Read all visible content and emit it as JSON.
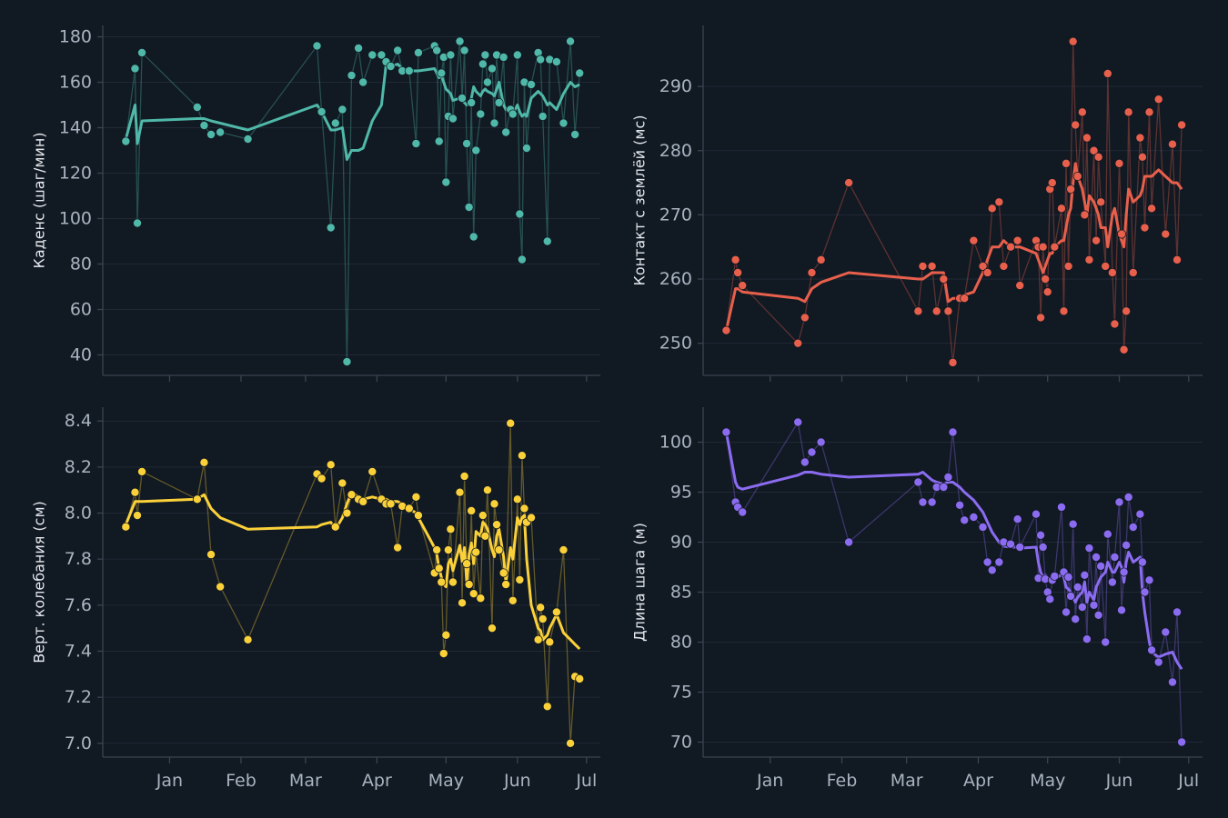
{
  "chart_data": [
    {
      "type": "line",
      "ylabel": "Каденс (шаг/мин)",
      "grid": true,
      "x": [
        -19,
        -15,
        -14,
        -12,
        12,
        15,
        18,
        22,
        34,
        64,
        66,
        70,
        72,
        75,
        77,
        79,
        82,
        84,
        88,
        92,
        94,
        96,
        99,
        101,
        104,
        107,
        108,
        115,
        116,
        117,
        118,
        119,
        120,
        121,
        122,
        123,
        126,
        127,
        128,
        129,
        130,
        131,
        132,
        133,
        135,
        136,
        137,
        138,
        140,
        141,
        142,
        143,
        145,
        146,
        148,
        149,
        151,
        152,
        153,
        154,
        155,
        157,
        160,
        161,
        162,
        164,
        165,
        168,
        171,
        174,
        176,
        178
      ],
      "xlim": [
        -29,
        187
      ],
      "xticks": [
        0,
        31,
        59,
        90,
        120,
        151,
        181
      ],
      "ylim": [
        31,
        185
      ],
      "yticks": [
        40,
        60,
        80,
        100,
        120,
        140,
        160,
        180
      ],
      "series": [
        {
          "color": "#4fb8a8",
          "markers": true,
          "line_width": 1.3,
          "line_opacity": 0.35,
          "values": [
            134,
            166,
            98,
            173,
            149,
            141,
            137,
            138,
            135,
            176,
            147,
            96,
            142,
            148,
            37,
            163,
            175,
            160,
            172,
            172,
            169,
            167,
            174,
            165,
            165,
            133,
            173,
            176,
            174,
            134,
            164,
            171,
            116,
            145,
            172,
            144,
            178,
            153,
            174,
            133,
            105,
            151,
            92,
            130,
            146,
            168,
            172,
            160,
            166,
            142,
            172,
            151,
            171,
            138,
            148,
            146,
            172,
            102,
            82,
            160,
            131,
            159,
            173,
            170,
            145,
            90,
            170,
            169,
            142,
            178,
            137,
            164
          ]
        },
        {
          "color": "#4fb8a8",
          "markers": false,
          "line_width": 3,
          "line_opacity": 1,
          "values": [
            135,
            150,
            133,
            143,
            144,
            144,
            143,
            142,
            139,
            150,
            147,
            139,
            139,
            140,
            126,
            130,
            130,
            131,
            143,
            150,
            168,
            167,
            168,
            166,
            165,
            165,
            165,
            166,
            164,
            162,
            163,
            160,
            157,
            156,
            155,
            152,
            153,
            152,
            151,
            150,
            151,
            153,
            158,
            156,
            154,
            156,
            157,
            156,
            155,
            154,
            157,
            160,
            150,
            148,
            147,
            146,
            150,
            147,
            145,
            146,
            145,
            153,
            156,
            155,
            154,
            150,
            151,
            148,
            155,
            160,
            158,
            159
          ]
        }
      ]
    },
    {
      "type": "line",
      "ylabel": "Контакт с землёй (мс)",
      "grid": true,
      "x": [
        -19,
        -15,
        -14,
        -12,
        12,
        15,
        18,
        22,
        34,
        64,
        66,
        70,
        72,
        75,
        77,
        79,
        82,
        84,
        88,
        92,
        94,
        96,
        99,
        101,
        104,
        107,
        108,
        115,
        116,
        117,
        118,
        119,
        120,
        121,
        122,
        123,
        126,
        127,
        128,
        129,
        130,
        131,
        132,
        133,
        135,
        136,
        137,
        138,
        140,
        141,
        142,
        143,
        145,
        146,
        148,
        149,
        151,
        152,
        153,
        154,
        155,
        157,
        160,
        161,
        162,
        164,
        165,
        168,
        171,
        174,
        176,
        178
      ],
      "xlim": [
        -29,
        187
      ],
      "xticks": [
        0,
        31,
        59,
        90,
        120,
        151,
        181
      ],
      "ylim": [
        245,
        299.5
      ],
      "yticks": [
        250,
        260,
        270,
        280,
        290
      ],
      "series": [
        {
          "color": "#e8604c",
          "markers": true,
          "line_width": 1.3,
          "line_opacity": 0.35,
          "values": [
            252,
            263,
            261,
            259,
            250,
            254,
            261,
            263,
            275,
            255,
            262,
            262,
            255,
            260,
            255,
            247,
            257,
            257,
            266,
            262,
            261,
            271,
            272,
            262,
            265,
            266,
            259,
            266,
            265,
            254,
            265,
            260,
            258,
            274,
            275,
            265,
            271,
            255,
            278,
            262,
            274,
            297,
            284,
            276,
            286,
            270,
            282,
            263,
            280,
            266,
            279,
            272,
            262,
            292,
            261,
            253,
            278,
            267,
            249,
            255,
            286,
            261,
            282,
            279,
            268,
            286,
            271,
            288,
            267,
            281,
            263,
            284
          ]
        },
        {
          "color": "#e8604c",
          "markers": false,
          "line_width": 3,
          "line_opacity": 1,
          "values": [
            252,
            258.5,
            258.5,
            258,
            257,
            256.5,
            258.5,
            259.5,
            261,
            260,
            260,
            261,
            261,
            261,
            256.5,
            257,
            257,
            257.5,
            258,
            261,
            263,
            265,
            265,
            266,
            265,
            265,
            265,
            264,
            263,
            262,
            261,
            262,
            263,
            264,
            264,
            265,
            266,
            266,
            268,
            270,
            271,
            275,
            278,
            276,
            274,
            272,
            270,
            273,
            272,
            271,
            270,
            268,
            268,
            265,
            270,
            271,
            267,
            266,
            265,
            270,
            274,
            272,
            273,
            274,
            276,
            276,
            276,
            277,
            276,
            275,
            275,
            274
          ]
        }
      ]
    },
    {
      "type": "line",
      "ylabel": "Верт. колебания (см)",
      "grid": true,
      "x": [
        -19,
        -15,
        -14,
        -12,
        12,
        15,
        18,
        22,
        34,
        64,
        66,
        70,
        72,
        75,
        77,
        79,
        82,
        84,
        88,
        92,
        94,
        96,
        99,
        101,
        104,
        107,
        108,
        115,
        116,
        117,
        118,
        119,
        120,
        121,
        122,
        123,
        126,
        127,
        128,
        129,
        130,
        131,
        132,
        133,
        135,
        136,
        137,
        138,
        140,
        141,
        142,
        143,
        145,
        146,
        148,
        149,
        151,
        152,
        153,
        154,
        155,
        157,
        160,
        161,
        162,
        164,
        165,
        168,
        171,
        174,
        176,
        178
      ],
      "xlim": [
        -29,
        187
      ],
      "xticks": [
        {
          "value": 0,
          "label": "Jan"
        },
        {
          "value": 31,
          "label": "Feb"
        },
        {
          "value": 59,
          "label": "Mar"
        },
        {
          "value": 90,
          "label": "Apr"
        },
        {
          "value": 120,
          "label": "May"
        },
        {
          "value": 151,
          "label": "Jun"
        },
        {
          "value": 181,
          "label": "Jul"
        }
      ],
      "ylim": [
        6.94,
        8.46
      ],
      "yticks": [
        {
          "value": 7,
          "label": "7.0"
        },
        7.2,
        7.4,
        7.6,
        7.8,
        {
          "value": 8,
          "label": "8.0"
        },
        8.2,
        8.4
      ],
      "series": [
        {
          "color": "#fbd13a",
          "markers": true,
          "line_width": 1.3,
          "line_opacity": 0.35,
          "values": [
            7.94,
            8.09,
            7.99,
            8.18,
            8.06,
            8.22,
            7.82,
            7.68,
            7.45,
            8.17,
            8.15,
            8.21,
            7.94,
            8.13,
            8.0,
            8.08,
            8.06,
            8.05,
            8.18,
            8.06,
            8.04,
            8.04,
            7.85,
            8.03,
            8.02,
            8.07,
            7.99,
            7.74,
            7.84,
            7.76,
            7.7,
            7.39,
            7.47,
            7.84,
            7.93,
            7.7,
            8.09,
            7.61,
            8.16,
            7.78,
            7.69,
            8.01,
            7.65,
            7.83,
            7.63,
            7.99,
            7.9,
            8.1,
            7.5,
            8.04,
            7.95,
            7.84,
            7.74,
            7.69,
            8.39,
            7.62,
            8.06,
            7.71,
            8.25,
            8.02,
            7.96,
            7.98,
            7.45,
            7.59,
            7.54,
            7.16,
            7.44,
            7.57,
            7.84,
            7.0,
            7.29,
            7.28
          ]
        },
        {
          "color": "#fbd13a",
          "markers": false,
          "line_width": 3,
          "line_opacity": 1,
          "values": [
            7.95,
            8.05,
            8.05,
            8.05,
            8.06,
            8.08,
            8.02,
            7.98,
            7.93,
            7.94,
            7.95,
            7.96,
            7.93,
            7.98,
            8.04,
            8.09,
            8.07,
            8.06,
            8.07,
            8.06,
            8.06,
            8.05,
            8.05,
            8.04,
            8.02,
            8.0,
            7.98,
            7.85,
            7.82,
            7.76,
            7.72,
            7.69,
            7.68,
            7.78,
            7.8,
            7.75,
            7.86,
            7.79,
            7.85,
            7.7,
            7.82,
            7.87,
            7.78,
            7.92,
            7.9,
            7.96,
            7.95,
            7.93,
            7.84,
            7.81,
            7.9,
            7.93,
            7.81,
            7.7,
            7.85,
            7.8,
            7.98,
            7.95,
            7.98,
            7.99,
            7.8,
            7.6,
            7.5,
            7.49,
            7.45,
            7.47,
            7.5,
            7.56,
            7.48,
            7.45,
            7.43,
            7.41
          ]
        }
      ]
    },
    {
      "type": "line",
      "ylabel": "Длина шага (м)",
      "grid": true,
      "x": [
        -19,
        -15,
        -14,
        -12,
        12,
        15,
        18,
        22,
        34,
        64,
        66,
        70,
        72,
        75,
        77,
        79,
        82,
        84,
        88,
        92,
        94,
        96,
        99,
        101,
        104,
        107,
        108,
        115,
        116,
        117,
        118,
        119,
        120,
        121,
        122,
        123,
        126,
        127,
        128,
        129,
        130,
        131,
        132,
        133,
        135,
        136,
        137,
        138,
        140,
        141,
        142,
        143,
        145,
        146,
        148,
        149,
        151,
        152,
        153,
        154,
        155,
        157,
        160,
        161,
        162,
        164,
        165,
        168,
        171,
        174,
        176,
        178
      ],
      "xlim": [
        -29,
        187
      ],
      "xticks": [
        {
          "value": 0,
          "label": "Jan"
        },
        {
          "value": 31,
          "label": "Feb"
        },
        {
          "value": 59,
          "label": "Mar"
        },
        {
          "value": 90,
          "label": "Apr"
        },
        {
          "value": 120,
          "label": "May"
        },
        {
          "value": 151,
          "label": "Jun"
        },
        {
          "value": 181,
          "label": "Jul"
        }
      ],
      "ylim": [
        68.5,
        103.5
      ],
      "yticks": [
        70,
        75,
        80,
        85,
        90,
        95,
        100
      ],
      "series": [
        {
          "color": "#8b6cf0",
          "markers": true,
          "line_width": 1.3,
          "line_opacity": 0.35,
          "values": [
            101,
            94,
            93.5,
            93,
            102,
            98,
            99,
            100,
            90,
            96,
            94,
            94,
            95.5,
            95.5,
            96.5,
            101,
            93.7,
            92.2,
            92.5,
            91.5,
            88,
            87.2,
            88,
            90,
            89.8,
            92.3,
            89.5,
            92.8,
            86.4,
            90.7,
            89.5,
            86.3,
            85,
            84.3,
            86.2,
            86.6,
            93.5,
            87,
            83,
            86.5,
            84.6,
            91.8,
            82.3,
            85.5,
            83.5,
            86.7,
            80.3,
            89.4,
            83.7,
            88.5,
            82.7,
            87.6,
            80,
            90.8,
            86,
            88.5,
            94,
            83.2,
            87,
            89.7,
            94.5,
            91.5,
            92.8,
            88,
            85,
            86.2,
            79.2,
            78,
            81,
            76,
            83,
            70
          ]
        },
        {
          "color": "#8b6cf0",
          "markers": false,
          "line_width": 3,
          "line_opacity": 1,
          "values": [
            101,
            96,
            95.5,
            95.3,
            96.7,
            97,
            97,
            96.8,
            96.5,
            96.8,
            97,
            96.2,
            96,
            95.8,
            96,
            96,
            95.5,
            95,
            94.2,
            93,
            92,
            91,
            90,
            89.6,
            89.5,
            89.5,
            89.4,
            89.5,
            88,
            87,
            86.5,
            86.7,
            86.5,
            86.3,
            86,
            86.2,
            86.8,
            86.5,
            85.5,
            85.3,
            85,
            84.5,
            84,
            84.5,
            85,
            86,
            84,
            85,
            84.2,
            85.5,
            86,
            86.5,
            87,
            88,
            87,
            87,
            88,
            87.5,
            86,
            88,
            89,
            88,
            88.5,
            85,
            83,
            80,
            79,
            78.5,
            78.8,
            79,
            78,
            77.3
          ]
        }
      ]
    }
  ]
}
